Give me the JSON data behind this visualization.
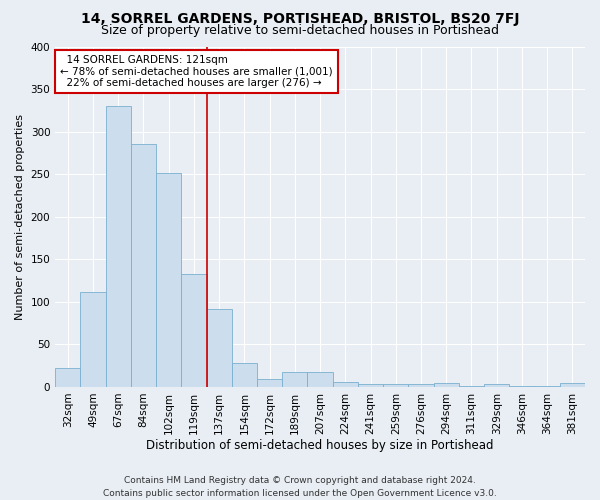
{
  "title": "14, SORREL GARDENS, PORTISHEAD, BRISTOL, BS20 7FJ",
  "subtitle": "Size of property relative to semi-detached houses in Portishead",
  "xlabel": "Distribution of semi-detached houses by size in Portishead",
  "ylabel": "Number of semi-detached properties",
  "bar_color": "#ccdded",
  "bar_edge_color": "#7ab0d0",
  "categories": [
    "32sqm",
    "49sqm",
    "67sqm",
    "84sqm",
    "102sqm",
    "119sqm",
    "137sqm",
    "154sqm",
    "172sqm",
    "189sqm",
    "207sqm",
    "224sqm",
    "241sqm",
    "259sqm",
    "276sqm",
    "294sqm",
    "311sqm",
    "329sqm",
    "346sqm",
    "364sqm",
    "381sqm"
  ],
  "values": [
    22,
    111,
    330,
    286,
    251,
    133,
    92,
    28,
    9,
    18,
    18,
    6,
    3,
    3,
    3,
    5,
    1,
    4,
    1,
    1,
    5
  ],
  "property_label": "14 SORREL GARDENS: 121sqm",
  "pct_smaller": 78,
  "pct_larger": 22,
  "count_smaller": 1001,
  "count_larger": 276,
  "vline_x_index": 5.5,
  "annotation_box_color": "#ffffff",
  "annotation_box_edge": "#cc0000",
  "vline_color": "#cc0000",
  "ylim": [
    0,
    400
  ],
  "yticks": [
    0,
    50,
    100,
    150,
    200,
    250,
    300,
    350,
    400
  ],
  "background_color": "#e8eef4",
  "grid_color": "#ffffff",
  "title_fontsize": 10,
  "subtitle_fontsize": 9,
  "xlabel_fontsize": 8.5,
  "ylabel_fontsize": 8,
  "tick_fontsize": 7.5,
  "annotation_fontsize": 7.5,
  "footer_fontsize": 6.5,
  "bar_width": 1.0,
  "footer_line1": "Contains HM Land Registry data © Crown copyright and database right 2024.",
  "footer_line2": "Contains public sector information licensed under the Open Government Licence v3.0."
}
